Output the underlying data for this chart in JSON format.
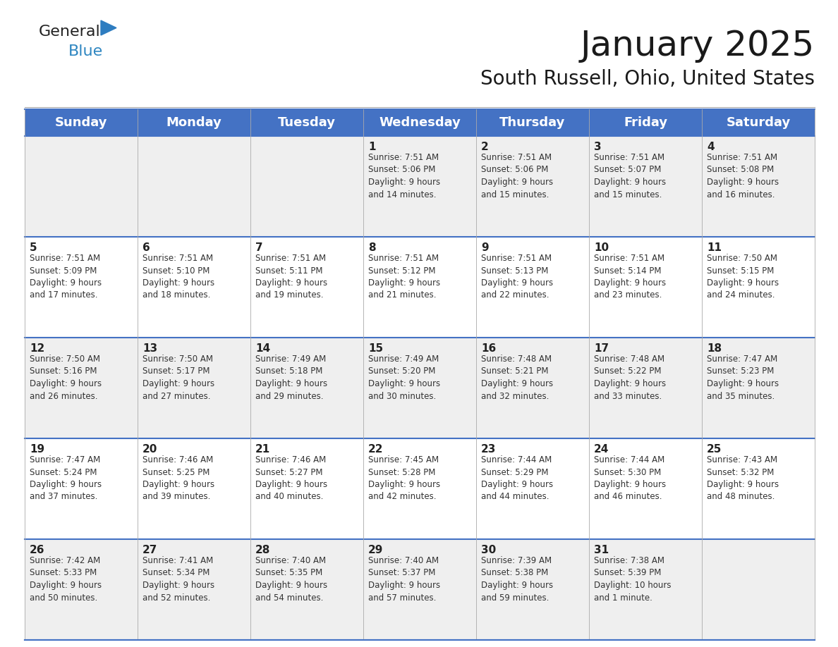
{
  "title": "January 2025",
  "subtitle": "South Russell, Ohio, United States",
  "header_color": "#4472C4",
  "header_text_color": "#FFFFFF",
  "cell_bg_even": "#EFEFEF",
  "cell_bg_odd": "#FFFFFF",
  "border_color": "#4472C4",
  "days_of_week": [
    "Sunday",
    "Monday",
    "Tuesday",
    "Wednesday",
    "Thursday",
    "Friday",
    "Saturday"
  ],
  "title_fontsize": 36,
  "subtitle_fontsize": 20,
  "header_fontsize": 13,
  "cell_day_fontsize": 11,
  "cell_text_fontsize": 8.5,
  "logo_general_color": "#222222",
  "logo_blue_color": "#2E86C1",
  "logo_triangle_color": "#2E7DC0",
  "weeks": [
    [
      {
        "day": "",
        "info": ""
      },
      {
        "day": "",
        "info": ""
      },
      {
        "day": "",
        "info": ""
      },
      {
        "day": "1",
        "info": "Sunrise: 7:51 AM\nSunset: 5:06 PM\nDaylight: 9 hours\nand 14 minutes."
      },
      {
        "day": "2",
        "info": "Sunrise: 7:51 AM\nSunset: 5:06 PM\nDaylight: 9 hours\nand 15 minutes."
      },
      {
        "day": "3",
        "info": "Sunrise: 7:51 AM\nSunset: 5:07 PM\nDaylight: 9 hours\nand 15 minutes."
      },
      {
        "day": "4",
        "info": "Sunrise: 7:51 AM\nSunset: 5:08 PM\nDaylight: 9 hours\nand 16 minutes."
      }
    ],
    [
      {
        "day": "5",
        "info": "Sunrise: 7:51 AM\nSunset: 5:09 PM\nDaylight: 9 hours\nand 17 minutes."
      },
      {
        "day": "6",
        "info": "Sunrise: 7:51 AM\nSunset: 5:10 PM\nDaylight: 9 hours\nand 18 minutes."
      },
      {
        "day": "7",
        "info": "Sunrise: 7:51 AM\nSunset: 5:11 PM\nDaylight: 9 hours\nand 19 minutes."
      },
      {
        "day": "8",
        "info": "Sunrise: 7:51 AM\nSunset: 5:12 PM\nDaylight: 9 hours\nand 21 minutes."
      },
      {
        "day": "9",
        "info": "Sunrise: 7:51 AM\nSunset: 5:13 PM\nDaylight: 9 hours\nand 22 minutes."
      },
      {
        "day": "10",
        "info": "Sunrise: 7:51 AM\nSunset: 5:14 PM\nDaylight: 9 hours\nand 23 minutes."
      },
      {
        "day": "11",
        "info": "Sunrise: 7:50 AM\nSunset: 5:15 PM\nDaylight: 9 hours\nand 24 minutes."
      }
    ],
    [
      {
        "day": "12",
        "info": "Sunrise: 7:50 AM\nSunset: 5:16 PM\nDaylight: 9 hours\nand 26 minutes."
      },
      {
        "day": "13",
        "info": "Sunrise: 7:50 AM\nSunset: 5:17 PM\nDaylight: 9 hours\nand 27 minutes."
      },
      {
        "day": "14",
        "info": "Sunrise: 7:49 AM\nSunset: 5:18 PM\nDaylight: 9 hours\nand 29 minutes."
      },
      {
        "day": "15",
        "info": "Sunrise: 7:49 AM\nSunset: 5:20 PM\nDaylight: 9 hours\nand 30 minutes."
      },
      {
        "day": "16",
        "info": "Sunrise: 7:48 AM\nSunset: 5:21 PM\nDaylight: 9 hours\nand 32 minutes."
      },
      {
        "day": "17",
        "info": "Sunrise: 7:48 AM\nSunset: 5:22 PM\nDaylight: 9 hours\nand 33 minutes."
      },
      {
        "day": "18",
        "info": "Sunrise: 7:47 AM\nSunset: 5:23 PM\nDaylight: 9 hours\nand 35 minutes."
      }
    ],
    [
      {
        "day": "19",
        "info": "Sunrise: 7:47 AM\nSunset: 5:24 PM\nDaylight: 9 hours\nand 37 minutes."
      },
      {
        "day": "20",
        "info": "Sunrise: 7:46 AM\nSunset: 5:25 PM\nDaylight: 9 hours\nand 39 minutes."
      },
      {
        "day": "21",
        "info": "Sunrise: 7:46 AM\nSunset: 5:27 PM\nDaylight: 9 hours\nand 40 minutes."
      },
      {
        "day": "22",
        "info": "Sunrise: 7:45 AM\nSunset: 5:28 PM\nDaylight: 9 hours\nand 42 minutes."
      },
      {
        "day": "23",
        "info": "Sunrise: 7:44 AM\nSunset: 5:29 PM\nDaylight: 9 hours\nand 44 minutes."
      },
      {
        "day": "24",
        "info": "Sunrise: 7:44 AM\nSunset: 5:30 PM\nDaylight: 9 hours\nand 46 minutes."
      },
      {
        "day": "25",
        "info": "Sunrise: 7:43 AM\nSunset: 5:32 PM\nDaylight: 9 hours\nand 48 minutes."
      }
    ],
    [
      {
        "day": "26",
        "info": "Sunrise: 7:42 AM\nSunset: 5:33 PM\nDaylight: 9 hours\nand 50 minutes."
      },
      {
        "day": "27",
        "info": "Sunrise: 7:41 AM\nSunset: 5:34 PM\nDaylight: 9 hours\nand 52 minutes."
      },
      {
        "day": "28",
        "info": "Sunrise: 7:40 AM\nSunset: 5:35 PM\nDaylight: 9 hours\nand 54 minutes."
      },
      {
        "day": "29",
        "info": "Sunrise: 7:40 AM\nSunset: 5:37 PM\nDaylight: 9 hours\nand 57 minutes."
      },
      {
        "day": "30",
        "info": "Sunrise: 7:39 AM\nSunset: 5:38 PM\nDaylight: 9 hours\nand 59 minutes."
      },
      {
        "day": "31",
        "info": "Sunrise: 7:38 AM\nSunset: 5:39 PM\nDaylight: 10 hours\nand 1 minute."
      },
      {
        "day": "",
        "info": ""
      }
    ]
  ]
}
